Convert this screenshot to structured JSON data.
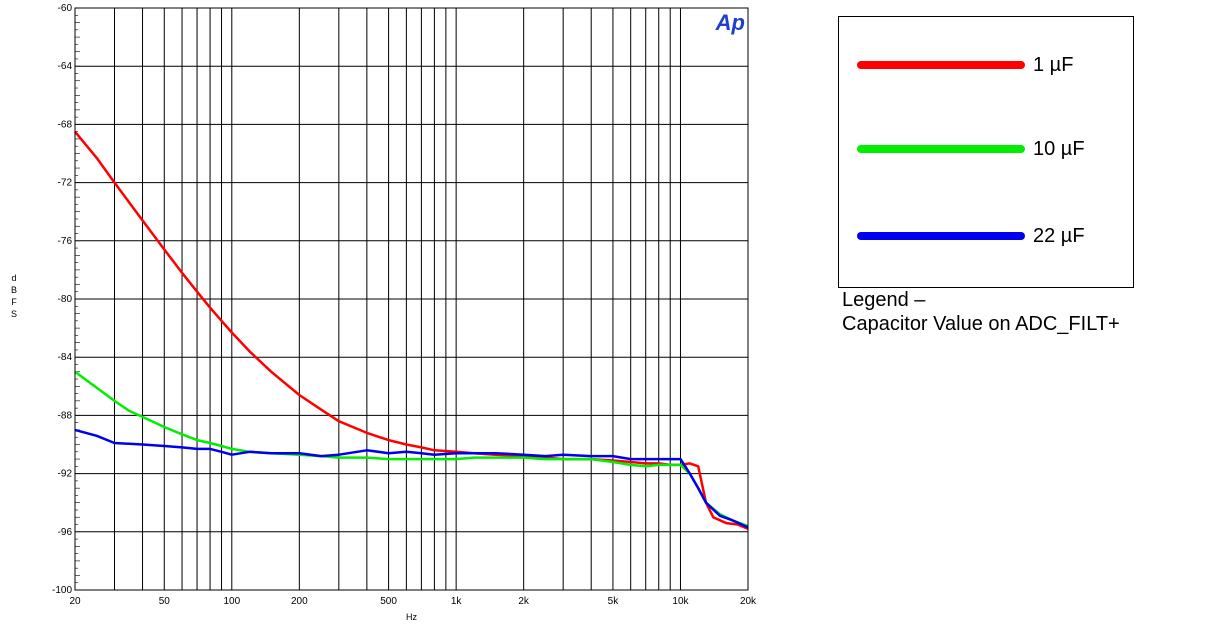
{
  "chart_data": {
    "type": "line",
    "title": "",
    "xlabel": "Hz",
    "ylabel": "dBFS",
    "xscale": "log",
    "xlim": [
      20,
      20000
    ],
    "ylim": [
      -100,
      -60
    ],
    "grid": true,
    "x_ticks": [
      {
        "value": 20,
        "label": "20"
      },
      {
        "value": 50,
        "label": "50"
      },
      {
        "value": 100,
        "label": "100"
      },
      {
        "value": 200,
        "label": "200"
      },
      {
        "value": 500,
        "label": "500"
      },
      {
        "value": 1000,
        "label": "1k"
      },
      {
        "value": 2000,
        "label": "2k"
      },
      {
        "value": 5000,
        "label": "5k"
      },
      {
        "value": 10000,
        "label": "10k"
      },
      {
        "value": 20000,
        "label": "20k"
      }
    ],
    "y_ticks": [
      -60,
      -64,
      -68,
      -72,
      -76,
      -80,
      -84,
      -88,
      -92,
      -96,
      -100
    ],
    "logo_text": "Ap",
    "series": [
      {
        "name": "1 µF",
        "color": "#ff0000",
        "points": [
          [
            20,
            -68.5
          ],
          [
            25,
            -70.3
          ],
          [
            30,
            -72.0
          ],
          [
            40,
            -74.6
          ],
          [
            50,
            -76.6
          ],
          [
            60,
            -78.2
          ],
          [
            70,
            -79.5
          ],
          [
            80,
            -80.6
          ],
          [
            90,
            -81.5
          ],
          [
            100,
            -82.3
          ],
          [
            120,
            -83.6
          ],
          [
            150,
            -85.0
          ],
          [
            200,
            -86.6
          ],
          [
            250,
            -87.6
          ],
          [
            300,
            -88.4
          ],
          [
            400,
            -89.2
          ],
          [
            500,
            -89.7
          ],
          [
            600,
            -90.0
          ],
          [
            700,
            -90.2
          ],
          [
            800,
            -90.4
          ],
          [
            1000,
            -90.5
          ],
          [
            1200,
            -90.6
          ],
          [
            1500,
            -90.7
          ],
          [
            2000,
            -90.8
          ],
          [
            2500,
            -90.9
          ],
          [
            3000,
            -91.0
          ],
          [
            4000,
            -91.0
          ],
          [
            5000,
            -91.1
          ],
          [
            6000,
            -91.2
          ],
          [
            7000,
            -91.3
          ],
          [
            8000,
            -91.3
          ],
          [
            9000,
            -91.4
          ],
          [
            10000,
            -91.4
          ],
          [
            11000,
            -91.3
          ],
          [
            12000,
            -91.5
          ],
          [
            13000,
            -94.0
          ],
          [
            14000,
            -95.0
          ],
          [
            16000,
            -95.4
          ],
          [
            18000,
            -95.5
          ],
          [
            20000,
            -95.8
          ]
        ]
      },
      {
        "name": "10 µF",
        "color": "#00ee00",
        "points": [
          [
            20,
            -85.0
          ],
          [
            25,
            -86.1
          ],
          [
            30,
            -87.0
          ],
          [
            35,
            -87.7
          ],
          [
            40,
            -88.1
          ],
          [
            50,
            -88.8
          ],
          [
            60,
            -89.3
          ],
          [
            70,
            -89.7
          ],
          [
            80,
            -89.9
          ],
          [
            90,
            -90.1
          ],
          [
            100,
            -90.3
          ],
          [
            120,
            -90.5
          ],
          [
            150,
            -90.6
          ],
          [
            200,
            -90.7
          ],
          [
            250,
            -90.8
          ],
          [
            300,
            -90.9
          ],
          [
            400,
            -90.9
          ],
          [
            500,
            -91.0
          ],
          [
            600,
            -91.0
          ],
          [
            700,
            -91.0
          ],
          [
            800,
            -91.0
          ],
          [
            1000,
            -91.0
          ],
          [
            1200,
            -90.9
          ],
          [
            1500,
            -90.9
          ],
          [
            2000,
            -90.9
          ],
          [
            2500,
            -91.0
          ],
          [
            3000,
            -91.0
          ],
          [
            4000,
            -91.0
          ],
          [
            5000,
            -91.2
          ],
          [
            6000,
            -91.4
          ],
          [
            7000,
            -91.5
          ],
          [
            8000,
            -91.4
          ],
          [
            9000,
            -91.4
          ],
          [
            10000,
            -91.4
          ],
          [
            11000,
            -92.0
          ],
          [
            12000,
            -93.0
          ],
          [
            13000,
            -94.0
          ],
          [
            15000,
            -94.8
          ],
          [
            17000,
            -95.2
          ],
          [
            20000,
            -95.6
          ]
        ]
      },
      {
        "name": "22 µF",
        "color": "#0000ee",
        "points": [
          [
            20,
            -89.0
          ],
          [
            25,
            -89.4
          ],
          [
            30,
            -89.9
          ],
          [
            40,
            -90.0
          ],
          [
            50,
            -90.1
          ],
          [
            60,
            -90.2
          ],
          [
            70,
            -90.3
          ],
          [
            80,
            -90.3
          ],
          [
            90,
            -90.5
          ],
          [
            100,
            -90.7
          ],
          [
            120,
            -90.5
          ],
          [
            150,
            -90.6
          ],
          [
            200,
            -90.6
          ],
          [
            250,
            -90.8
          ],
          [
            300,
            -90.7
          ],
          [
            400,
            -90.4
          ],
          [
            500,
            -90.6
          ],
          [
            600,
            -90.5
          ],
          [
            700,
            -90.6
          ],
          [
            800,
            -90.7
          ],
          [
            1000,
            -90.6
          ],
          [
            1200,
            -90.6
          ],
          [
            1500,
            -90.6
          ],
          [
            2000,
            -90.7
          ],
          [
            2500,
            -90.8
          ],
          [
            3000,
            -90.7
          ],
          [
            4000,
            -90.8
          ],
          [
            5000,
            -90.8
          ],
          [
            6000,
            -91.0
          ],
          [
            7000,
            -91.0
          ],
          [
            8000,
            -91.0
          ],
          [
            9000,
            -91.0
          ],
          [
            10000,
            -91.0
          ],
          [
            11000,
            -92.0
          ],
          [
            12000,
            -93.0
          ],
          [
            13000,
            -94.0
          ],
          [
            15000,
            -94.9
          ],
          [
            17000,
            -95.2
          ],
          [
            20000,
            -95.7
          ]
        ]
      }
    ]
  },
  "legend": {
    "items": [
      {
        "label": "1 µF",
        "color": "#ff0000"
      },
      {
        "label": "10 µF",
        "color": "#00ee00"
      },
      {
        "label": "22 µF",
        "color": "#0000ee"
      }
    ],
    "caption_line1": "Legend –",
    "caption_line2": "Capacitor Value on ADC_FILT+"
  }
}
